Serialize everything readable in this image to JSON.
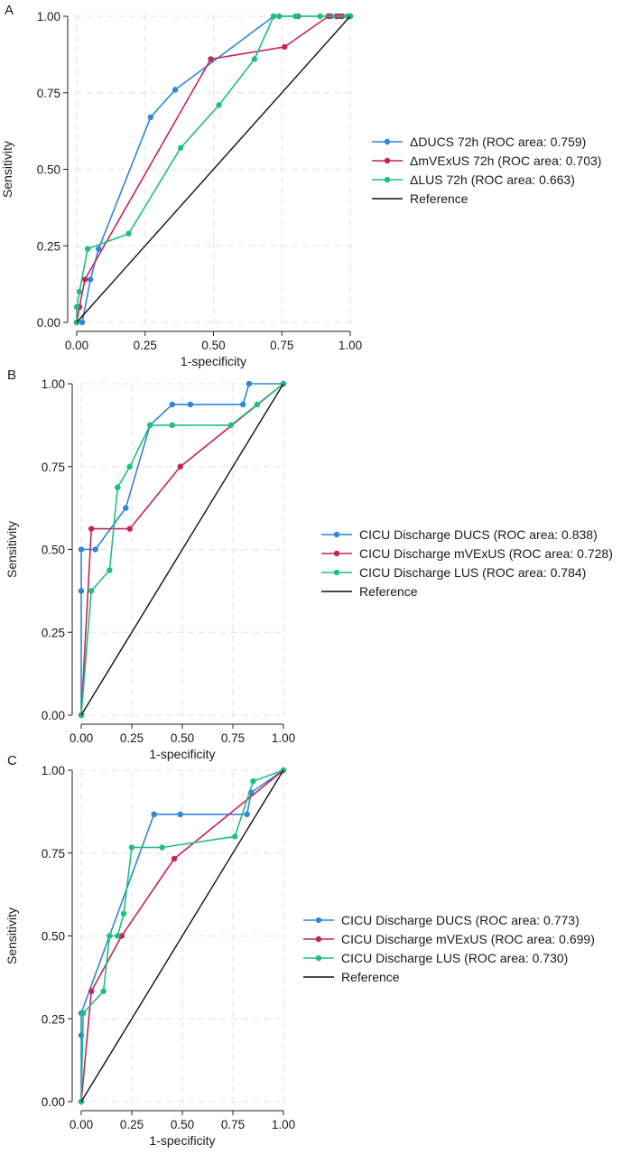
{
  "chart_data": [
    {
      "panel": "A",
      "type": "line",
      "xlabel": "1-specificity",
      "ylabel": "Sensitivity",
      "xlim": [
        0,
        1
      ],
      "ylim": [
        0,
        1
      ],
      "xticks": [
        "0.00",
        "0.25",
        "0.50",
        "0.75",
        "1.00"
      ],
      "yticks": [
        "0.00",
        "0.25",
        "0.50",
        "0.75",
        "1.00"
      ],
      "grid": true,
      "legend_position": "right",
      "series": [
        {
          "name": "ΔDUCS 72h (ROC area: 0.759)",
          "color": "#2f86d9",
          "x": [
            0,
            0.02,
            0.05,
            0.08,
            0.27,
            0.36,
            0.72,
            0.81,
            0.93,
            0.96,
            1.0
          ],
          "y": [
            0,
            0,
            0.14,
            0.24,
            0.67,
            0.76,
            1.0,
            1.0,
            1.0,
            1.0,
            1.0
          ]
        },
        {
          "name": "ΔmVExUS 72h (ROC area: 0.703)",
          "color": "#c8225b",
          "x": [
            0,
            0.01,
            0.03,
            0.49,
            0.76,
            0.92,
            0.95,
            0.97,
            1.0
          ],
          "y": [
            0,
            0.05,
            0.14,
            0.86,
            0.9,
            1.0,
            1.0,
            1.0,
            1.0
          ]
        },
        {
          "name": "ΔLUS 72h (ROC area: 0.663)",
          "color": "#1ec07d",
          "x": [
            0,
            0.0,
            0.01,
            0.04,
            0.19,
            0.38,
            0.52,
            0.65,
            0.72,
            0.74,
            0.8,
            0.89,
            0.99,
            1.0
          ],
          "y": [
            0,
            0.05,
            0.1,
            0.24,
            0.29,
            0.57,
            0.71,
            0.86,
            1.0,
            1.0,
            1.0,
            1.0,
            1.0,
            1.0
          ]
        },
        {
          "name": "Reference",
          "color": "#111111",
          "markers": false,
          "x": [
            0,
            1
          ],
          "y": [
            0,
            1
          ]
        }
      ]
    },
    {
      "panel": "B",
      "type": "line",
      "xlabel": "1-specificity",
      "ylabel": "Sensitivity",
      "xlim": [
        0,
        1
      ],
      "ylim": [
        0,
        1
      ],
      "xticks": [
        "0.00",
        "0.25",
        "0.50",
        "0.75",
        "1.00"
      ],
      "yticks": [
        "0.00",
        "0.25",
        "0.50",
        "0.75",
        "1.00"
      ],
      "grid": true,
      "legend_position": "right",
      "series": [
        {
          "name": "CICU Discharge DUCS (ROC area: 0.838)",
          "color": "#2f86d9",
          "x": [
            0,
            0,
            0,
            0.07,
            0.22,
            0.34,
            0.45,
            0.54,
            0.8,
            0.83,
            1.0
          ],
          "y": [
            0,
            0.375,
            0.5,
            0.5,
            0.625,
            0.875,
            0.9375,
            0.9375,
            0.9375,
            1.0,
            1.0
          ]
        },
        {
          "name": "CICU Discharge mVExUS (ROC area: 0.728)",
          "color": "#c8225b",
          "x": [
            0,
            0.05,
            0.24,
            0.49,
            1.0
          ],
          "y": [
            0,
            0.5625,
            0.5625,
            0.75,
            1.0
          ]
        },
        {
          "name": "CICU Discharge LUS (ROC area: 0.784)",
          "color": "#1ec07d",
          "x": [
            0,
            0.05,
            0.14,
            0.18,
            0.24,
            0.34,
            0.45,
            0.74,
            0.87,
            1.0
          ],
          "y": [
            0,
            0.375,
            0.4375,
            0.6875,
            0.75,
            0.875,
            0.875,
            0.875,
            0.9375,
            1.0
          ]
        },
        {
          "name": "Reference",
          "color": "#111111",
          "markers": false,
          "x": [
            0,
            1
          ],
          "y": [
            0,
            1
          ]
        }
      ]
    },
    {
      "panel": "C",
      "type": "line",
      "xlabel": "1-specificity",
      "ylabel": "Sensitivity",
      "xlim": [
        0,
        1
      ],
      "ylim": [
        0,
        1
      ],
      "xticks": [
        "0.00",
        "0.25",
        "0.50",
        "0.75",
        "1.00"
      ],
      "yticks": [
        "0.00",
        "0.25",
        "0.50",
        "0.75",
        "1.00"
      ],
      "grid": true,
      "legend_position": "right",
      "series": [
        {
          "name": "CICU Discharge DUCS (ROC area: 0.773)",
          "color": "#2f86d9",
          "x": [
            0,
            0,
            0,
            0.36,
            0.49,
            0.82,
            0.84,
            1.0
          ],
          "y": [
            0,
            0.2,
            0.267,
            0.867,
            0.867,
            0.867,
            0.933,
            1.0
          ]
        },
        {
          "name": "CICU Discharge mVExUS (ROC area: 0.699)",
          "color": "#c8225b",
          "x": [
            0,
            0.05,
            0.2,
            0.46,
            1.0
          ],
          "y": [
            0,
            0.333,
            0.5,
            0.733,
            1.0
          ]
        },
        {
          "name": "CICU Discharge LUS (ROC area: 0.730)",
          "color": "#1ec07d",
          "x": [
            0,
            0.01,
            0.11,
            0.14,
            0.18,
            0.21,
            0.25,
            0.4,
            0.76,
            0.85,
            1.0
          ],
          "y": [
            0,
            0.267,
            0.333,
            0.5,
            0.5,
            0.567,
            0.767,
            0.767,
            0.8,
            0.967,
            1.0
          ]
        },
        {
          "name": "Reference",
          "color": "#111111",
          "markers": false,
          "x": [
            0,
            1
          ],
          "y": [
            0,
            1
          ]
        }
      ]
    }
  ]
}
